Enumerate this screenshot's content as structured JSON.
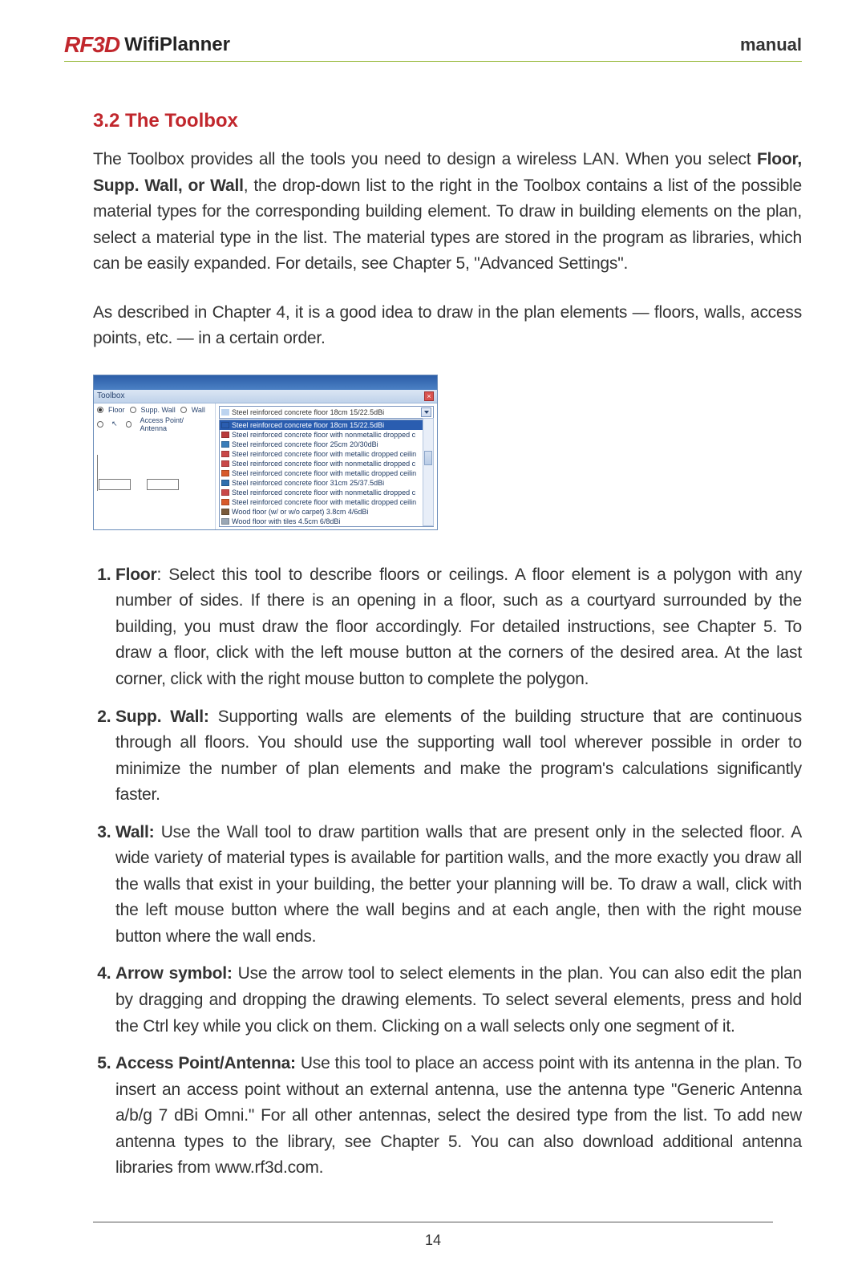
{
  "header": {
    "logo_mark": "RF3D",
    "logo_text": "WifiPlanner",
    "manual": "manual"
  },
  "section": {
    "title": "3.2 The Toolbox",
    "para1_a": "The Toolbox provides all the tools you need to design a wireless LAN. When you select ",
    "para1_b": "Floor, Supp. Wall, or Wall",
    "para1_c": ", the drop-down list to the right in the Toolbox contains a list of the possible material types for the corresponding building element. To draw in building elements on the plan, select a material type in the list. The material types are stored in the program as libraries, which can be easily expanded. For details, see Chapter 5, \"Advanced Settings\".",
    "para2": "As described in Chapter 4, it is a good idea to draw in the plan elements — floors, walls, access points, etc. — in a certain order."
  },
  "toolbox": {
    "title": "Toolbox",
    "radios": {
      "floor": "Floor",
      "supp": "Supp. Wall",
      "wall": "Wall",
      "ap": "Access Point/ Antenna"
    },
    "combo_text": "Steel reinforced concrete floor  18cm 15/22.5dBi",
    "items": [
      {
        "c": "#2a5db0",
        "t": "Steel reinforced concrete floor  18cm 15/22.5dBi",
        "hl": true
      },
      {
        "c": "#b93a3a",
        "t": "Steel reinforced concrete floor with nonmetallic dropped c"
      },
      {
        "c": "#3a7db9",
        "t": "Steel reinforced concrete floor  25cm 20/30dBi"
      },
      {
        "c": "#c94848",
        "t": "Steel reinforced concrete floor with metallic dropped ceilin"
      },
      {
        "c": "#c94848",
        "t": "Steel reinforced concrete floor with nonmetallic dropped c"
      },
      {
        "c": "#d85a2a",
        "t": "Steel reinforced concrete floor with metallic dropped ceilin"
      },
      {
        "c": "#2f6fae",
        "t": "Steel reinforced concrete floor  31cm 25/37.5dBi"
      },
      {
        "c": "#c94848",
        "t": "Steel reinforced concrete floor with nonmetallic dropped c"
      },
      {
        "c": "#d85a2a",
        "t": "Steel reinforced concrete floor with metallic dropped ceilin"
      },
      {
        "c": "#7a5a3a",
        "t": "Wood floor (w/ or w/o carpet) 3.8cm 4/6dBi"
      },
      {
        "c": "#9aa7b5",
        "t": "Wood floor with tiles 4.5cm 6/8dBi"
      }
    ]
  },
  "list": {
    "i1_a": "Floor",
    "i1_b": ": Select this tool to describe floors or ceilings. A floor element is a polygon with any number of sides. If there is an opening in a floor, such as a courtyard surrounded by the building, you must draw the floor accordingly. For detailed instructions, see Chapter 5. To draw a floor, click with the left mouse button at the corners of the desired area. At the last corner, click with the right mouse button to complete the polygon.",
    "i2_a": "Supp. Wall:",
    "i2_b": " Supporting walls are elements of the building structure that are continuous through all floors. You should use the supporting wall tool wherever possible in order to minimize the number of plan elements and make the program's calculations significantly faster.",
    "i3_a": "Wall:",
    "i3_b": " Use the Wall tool to draw partition walls that are present only in the selected floor. A wide variety of material types is available for partition walls, and the more exactly you draw all the walls that exist in your building, the better your planning will be. To draw a wall, click with the left mouse button where the wall begins and at each angle, then with the right mouse button where the wall ends.",
    "i4_a": "Arrow symbol:",
    "i4_b": " Use the arrow tool to select elements in the plan. You can also edit the plan by dragging and dropping the drawing elements. To select several elements, press and hold the Ctrl key while you click on them. Clicking on a wall selects only one segment of it.",
    "i5_a": "Access Point/Antenna:",
    "i5_b": " Use this tool to place an access point with its antenna in the plan. To insert an access point without an external antenna, use the antenna type \"Generic Antenna a/b/g 7 dBi Omni.\" For all other antennas, select the desired type from the list. To add new antenna types to the library, see Chapter 5. You can also download additional antenna libraries from www.rf3d.com."
  },
  "page_number": "14"
}
